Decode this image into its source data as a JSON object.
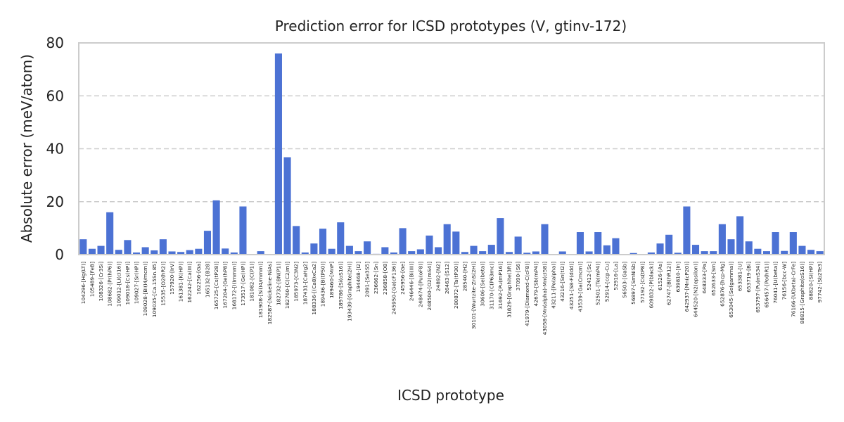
{
  "chart_data": {
    "type": "bar",
    "title": "Prediction error for ICSD prototypes (V, gtinv-172)",
    "xlabel": "ICSD prototype",
    "ylabel": "Absolute error (meV/atom)",
    "ylim": [
      0,
      80
    ],
    "yticks": [
      0,
      20,
      40,
      60,
      80
    ],
    "grid": "horizontal dashed",
    "bar_color": "#4c72d4",
    "grid_color": "#cccccc",
    "spine_color": "#cccccc",
    "categories": [
      "104296-[Hg(LT)]",
      "105489-[FeB]",
      "108326-[Cr3Si]",
      "108682-[Pr(hP6)]",
      "109012-[Li(cI16)]",
      "109018-[Cs(HP)]",
      "109027-[Sr(HP)]",
      "109028-[Bi(I4/mcm)]",
      "109035-[Ca.15Sn.85]",
      "15535-[O2(hR2)]",
      "157920-[IrV]",
      "161381-[K(HP)]",
      "162242-[Ca(III)]",
      "162256-[Ga]",
      "165132-[B28]",
      "165725-[Cs(tP28)]",
      "167204-[Ge(hP8)]",
      "168172-[I(Immm)]",
      "173517-[Ge(HP)]",
      "181082-[C(P1)]",
      "181908-[Si(I4/mmm)]",
      "182587-[Nickeline-NiAs]",
      "182732-[BN(P1)]",
      "182760-[C(C2/m)]",
      "185973-[C3N2]",
      "187431-[CaHg2]",
      "188336-[(Ca8)xCa2]",
      "189436-[B(tP50)]",
      "189460-[MnP]",
      "189786-[Si(oS16)]",
      "193439-[Graphite(2H)]",
      "194468-[I2]",
      "2091-[Se3S5]",
      "236662-[Sn]",
      "236858-[O8]",
      "245950-[Ge(cF136)]",
      "245956-[Ge]",
      "246446-[Bi(III)]",
      "248474-[Pu(oF8)]",
      "248500-[O2(mS4)]",
      "24892-[N2]",
      "26463-[S12]",
      "280872-[Ta(tP30)]",
      "28540-[H2]",
      "30101-[Wurtzite-ZnS(2H)]",
      "30606-[Se(beta)]",
      "31170-[C(P63mc)]",
      "31692-[Pu(mP16)]",
      "31829-[Graphite(3R)]",
      "37090-[S6]",
      "41979-[Diamond-C(cF8)]",
      "42679-[Sb(mP4)]",
      "43058-[Mn(alpha)-Mn(cI58)]",
      "43211-[Po(alpha)]",
      "43216-[Sn(tI2)]",
      "43251-[S8-F(ddd)]",
      "43539-[Ga(Cmcm)]",
      "52412-[Sc]",
      "52501-[Te(mP4)]",
      "52914-[ccp-Cu]",
      "52916-[La]",
      "56503-[GaSb]",
      "56897-[SmNiSb]",
      "57192-[Cs(tP8)]",
      "609832-[P(black)]",
      "61526-[As]",
      "62747-[B(hR12)]",
      "639810-[In]",
      "642937-[Mn(cP20)]",
      "644520-[N2(epsilon)]",
      "648333-[Pa]",
      "652633-[Sm]",
      "652876-[hcp-Mg]",
      "653045-[Se(gamma)]",
      "653381-[U]",
      "653719-[Bi]",
      "653797-[Pu(mS34)]",
      "656457-[Po(hR1)]",
      "76041-[U(beta)]",
      "76156-[bcc-W]",
      "76166-[U(beta)-CrFe]",
      "88815-[Graphite(oS16)]",
      "88820-[Si(HP)]",
      "97742-[Sb2Te3]"
    ],
    "values": [
      5.8,
      2.2,
      3.3,
      16.0,
      1.8,
      5.5,
      0.8,
      2.8,
      1.6,
      5.8,
      1.2,
      1.0,
      1.7,
      2.2,
      9.0,
      20.5,
      2.3,
      0.8,
      18.2,
      0.1,
      1.3,
      0.1,
      76.0,
      36.8,
      10.8,
      0.8,
      4.2,
      9.8,
      2.2,
      12.2,
      3.3,
      1.3,
      5.0,
      0.3,
      2.8,
      0.8,
      10.0,
      1.3,
      2.0,
      7.2,
      2.8,
      11.5,
      8.7,
      1.0,
      3.3,
      1.3,
      3.7,
      13.8,
      1.0,
      6.8,
      0.7,
      1.2,
      11.5,
      0.1,
      1.2,
      0.1,
      8.5,
      1.2,
      8.5,
      3.5,
      6.2,
      0.1,
      0.6,
      0.2,
      0.8,
      4.2,
      7.5,
      0.7,
      18.2,
      3.7,
      1.3,
      1.3,
      11.5,
      5.8,
      14.5,
      5.0,
      2.2,
      1.3,
      8.5,
      1.4,
      8.5,
      3.3,
      1.8,
      1.3
    ]
  }
}
